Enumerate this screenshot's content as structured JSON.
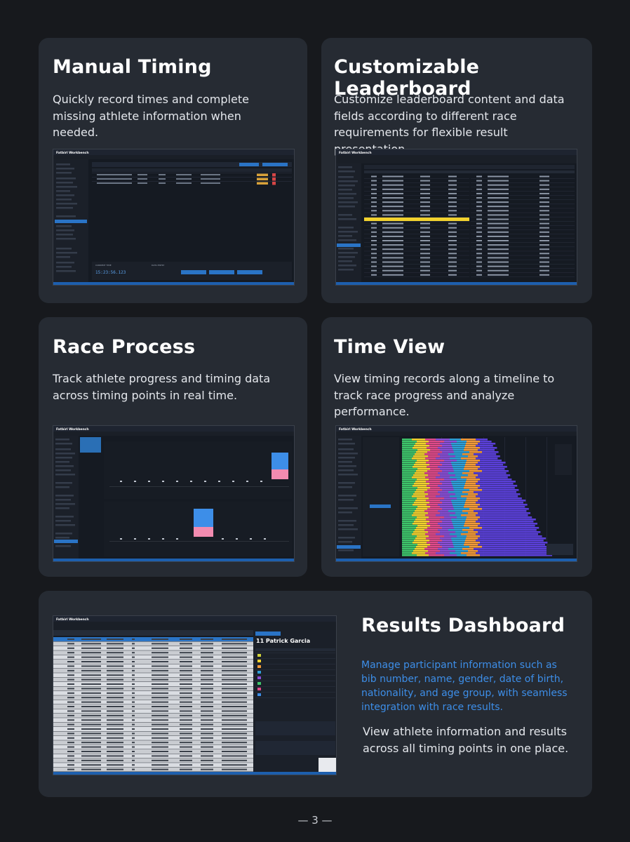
{
  "cards": {
    "manual_timing": {
      "title": "Manual Timing",
      "description": "Quickly record times and complete missing athlete information when needed."
    },
    "leaderboard": {
      "title": "Customizable Leaderboard",
      "description": "Customize leaderboard content and data fields according to different race requirements for flexible result presentation."
    },
    "race_process": {
      "title": "Race Process",
      "description": "Track athlete progress and timing data across timing points in real time."
    },
    "time_view": {
      "title": "Time View",
      "description": "View timing records along a timeline to track race progress and analyze performance."
    },
    "results_dashboard": {
      "title": "Results Dashboard",
      "highlight": "Manage participant information such as bib number, name, gender, date of birth, nationality, and age group, with seamless integration with race results.",
      "description": "View athlete information and results across all timing points in one place."
    }
  },
  "screenshots": {
    "manual_timing": {
      "clock": "15:23:56.123"
    },
    "results_dashboard": {
      "athlete": "11 Patrick Garcia"
    }
  },
  "colors": {
    "background": "#17191d",
    "card": "#262b33",
    "accent_blue": "#3d8ee8",
    "app_status_bar": "#1d5fae",
    "highlight_row": "#f2d22e"
  },
  "footer": {
    "page_label": "— 3 —"
  }
}
